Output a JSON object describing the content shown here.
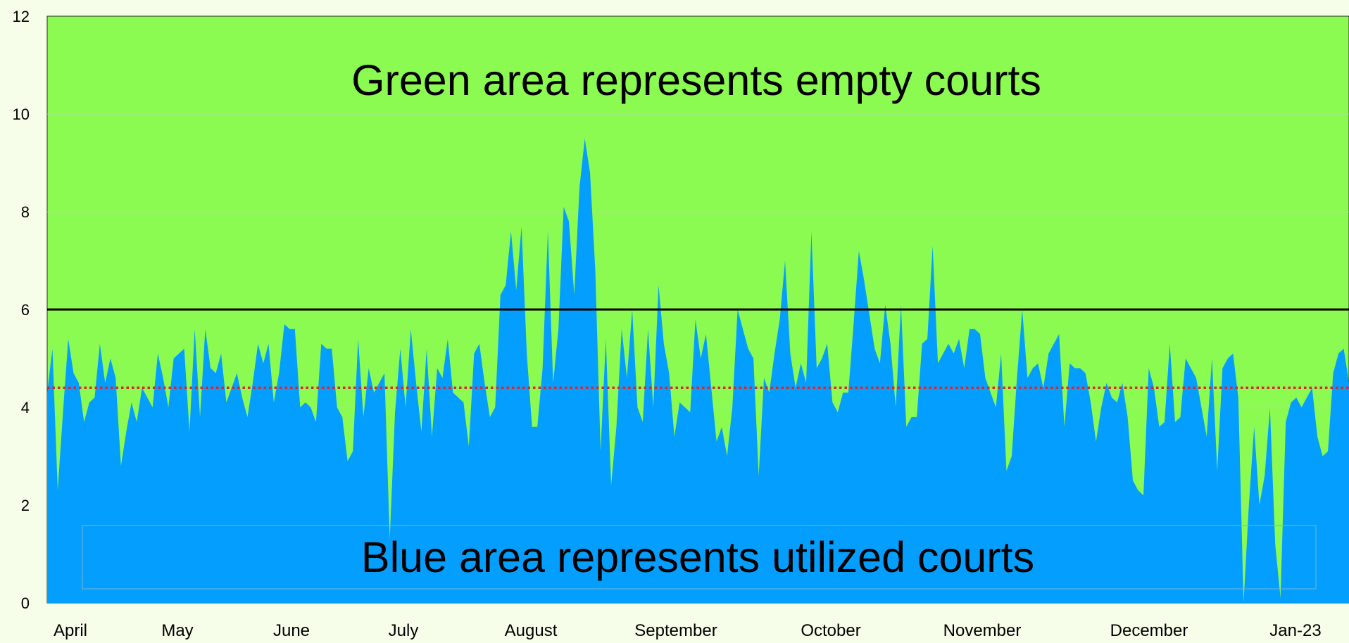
{
  "chart_data": {
    "type": "area",
    "title": "",
    "xlabel": "",
    "ylabel": "",
    "ylim": [
      0,
      12
    ],
    "yticks": [
      0,
      2,
      4,
      6,
      8,
      10,
      12
    ],
    "grid": true,
    "legend": "none",
    "month_labels": [
      "April",
      "May",
      "June",
      "July",
      "August",
      "September",
      "October",
      "November",
      "December",
      "Jan-23"
    ],
    "annotations": {
      "top": "Green area represents empty courts",
      "bottom": "Blue area represents utilized courts"
    },
    "reference_lines": [
      {
        "value": 6.0,
        "style": "solid",
        "color": "#000000"
      },
      {
        "value": 4.4,
        "style": "dotted",
        "color": "#e0242c"
      }
    ],
    "colors": {
      "used": "#049ffe",
      "empty": "#8bfb52",
      "background": "#f6fde8"
    },
    "series": [
      {
        "values": [
          4.3,
          5.2,
          2.3,
          3.9,
          5.4,
          4.7,
          4.5,
          3.7,
          4.1,
          4.2,
          5.3,
          4.5,
          5.0,
          4.6,
          2.8,
          3.5,
          4.1,
          3.7,
          4.4,
          4.2,
          4.0,
          5.1,
          4.6,
          4.0,
          5.0,
          5.1,
          5.2,
          3.5,
          5.6,
          3.8,
          5.6,
          4.8,
          4.7,
          5.1,
          4.1,
          4.4,
          4.7,
          4.2,
          3.8,
          4.5,
          5.3,
          4.9,
          5.3,
          4.1,
          4.7,
          5.7,
          5.6,
          5.6,
          4.0,
          4.1,
          4.0,
          3.7,
          5.3,
          5.2,
          5.2,
          4.0,
          3.8,
          2.9,
          3.1,
          5.4,
          3.8,
          4.8,
          4.3,
          4.5,
          4.7,
          1.3,
          3.9,
          5.2,
          4.0,
          5.6,
          4.5,
          3.5,
          5.2,
          3.4,
          4.8,
          4.6,
          5.4,
          4.3,
          4.2,
          4.1,
          3.2,
          5.1,
          5.3,
          4.5,
          3.8,
          4.0,
          6.3,
          6.5,
          7.6,
          6.4,
          7.7,
          5.1,
          3.6,
          3.6,
          4.8,
          7.6,
          4.5,
          5.6,
          8.1,
          7.8,
          6.3,
          8.5,
          9.5,
          8.8,
          6.8,
          3.1,
          5.4,
          2.4,
          3.6,
          5.6,
          4.6,
          6.0,
          4.0,
          3.7,
          5.6,
          4.0,
          6.5,
          5.3,
          4.7,
          3.4,
          4.1,
          4.0,
          3.9,
          5.8,
          5.0,
          5.5,
          4.4,
          3.3,
          3.6,
          3.0,
          4.0,
          6.0,
          5.6,
          5.2,
          5.0,
          2.6,
          4.6,
          4.3,
          5.1,
          5.8,
          7.0,
          5.1,
          4.4,
          4.9,
          4.5,
          7.6,
          4.8,
          5.0,
          5.3,
          4.1,
          3.9,
          4.3,
          4.3,
          5.7,
          7.2,
          6.6,
          5.9,
          5.2,
          4.9,
          6.1,
          5.3,
          4.0,
          6.1,
          3.6,
          3.8,
          3.8,
          5.3,
          5.4,
          7.3,
          4.9,
          5.1,
          5.3,
          5.1,
          5.4,
          4.8,
          5.6,
          5.6,
          5.5,
          4.6,
          4.3,
          4.0,
          5.1,
          2.7,
          3.0,
          4.6,
          6.0,
          4.6,
          4.8,
          4.9,
          4.4,
          5.1,
          5.3,
          5.5,
          3.6,
          4.9,
          4.8,
          4.8,
          4.7,
          4.1,
          3.3,
          4.0,
          4.5,
          4.2,
          4.1,
          4.5,
          3.8,
          2.5,
          2.3,
          2.2,
          4.8,
          4.4,
          3.6,
          3.7,
          5.3,
          3.7,
          3.8,
          5.0,
          4.8,
          4.6,
          4.0,
          3.4,
          5.0,
          2.7,
          4.8,
          5.0,
          5.1,
          4.2,
          0.0,
          2.0,
          3.6,
          2.0,
          2.6,
          4.0,
          1.2,
          0.1,
          3.7,
          4.1,
          4.2,
          4.0,
          4.2,
          4.4,
          3.4,
          3.0,
          3.1,
          4.7,
          5.1,
          5.2,
          4.5
        ]
      }
    ]
  }
}
